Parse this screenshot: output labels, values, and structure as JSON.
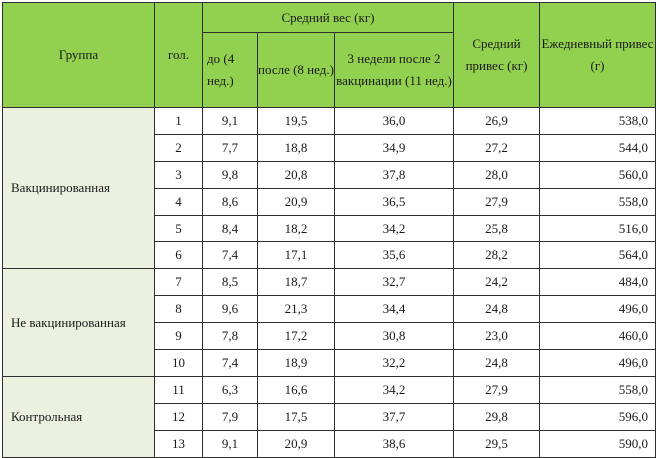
{
  "headers": {
    "group": "Группа",
    "gol": "гол.",
    "avg_weight": "Средний вес (кг)",
    "before": "до (4 нед.)",
    "after": "после (8 нед.)",
    "three_weeks": "3 недели после 2 вакцинации (11 нед.)",
    "avg_gain": "Средний привес (кг)",
    "daily_gain": "Ежедневный привес (г)"
  },
  "groups": [
    {
      "name": "Вакцинированная",
      "rows": [
        {
          "id": "1",
          "before": "9,1",
          "after": "19,5",
          "w11": "36,0",
          "gain": "26,9",
          "daily": "538,0"
        },
        {
          "id": "2",
          "before": "7,7",
          "after": "18,8",
          "w11": "34,9",
          "gain": "27,2",
          "daily": "544,0"
        },
        {
          "id": "3",
          "before": "9,8",
          "after": "20,8",
          "w11": "37,8",
          "gain": "28,0",
          "daily": "560,0"
        },
        {
          "id": "4",
          "before": "8,6",
          "after": "20,9",
          "w11": "36,5",
          "gain": "27,9",
          "daily": "558,0"
        },
        {
          "id": "5",
          "before": "8,4",
          "after": "18,2",
          "w11": "34,2",
          "gain": "25,8",
          "daily": "516,0"
        },
        {
          "id": "6",
          "before": "7,4",
          "after": "17,1",
          "w11": "35,6",
          "gain": "28,2",
          "daily": "564,0"
        }
      ]
    },
    {
      "name": "Не вакцинированная",
      "rows": [
        {
          "id": "7",
          "before": "8,5",
          "after": "18,7",
          "w11": "32,7",
          "gain": "24,2",
          "daily": "484,0"
        },
        {
          "id": "8",
          "before": "9,6",
          "after": "21,3",
          "w11": "34,4",
          "gain": "24,8",
          "daily": "496,0"
        },
        {
          "id": "9",
          "before": "7,8",
          "after": "17,2",
          "w11": "30,8",
          "gain": "23,0",
          "daily": "460,0"
        },
        {
          "id": "10",
          "before": "7,4",
          "after": "18,9",
          "w11": "32,2",
          "gain": "24,8",
          "daily": "496,0"
        }
      ]
    },
    {
      "name": "Контрольная",
      "rows": [
        {
          "id": "11",
          "before": "6,3",
          "after": "16,6",
          "w11": "34,2",
          "gain": "27,9",
          "daily": "558,0"
        },
        {
          "id": "12",
          "before": "7,9",
          "after": "17,5",
          "w11": "37,7",
          "gain": "29,8",
          "daily": "596,0"
        },
        {
          "id": "13",
          "before": "9,1",
          "after": "20,9",
          "w11": "38,6",
          "gain": "29,5",
          "daily": "590,0"
        }
      ]
    }
  ],
  "colors": {
    "header_bg": "#92d050",
    "group_bg": "#ebf1de",
    "border": "#2f2f2f"
  }
}
